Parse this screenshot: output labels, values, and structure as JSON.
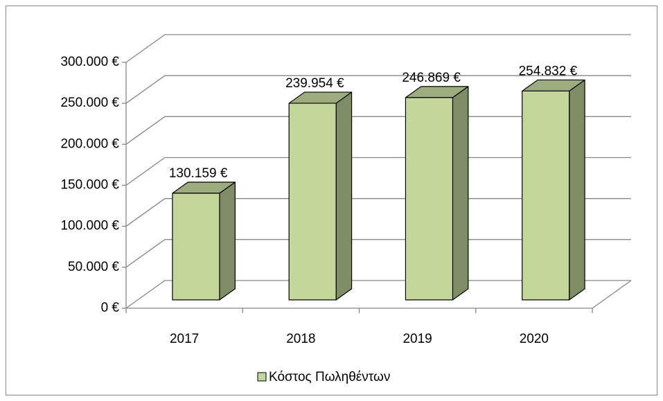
{
  "chart_data": {
    "type": "bar3d",
    "categories": [
      "2017",
      "2018",
      "2019",
      "2020"
    ],
    "series": [
      {
        "name": "Κόστος Πωληθέντων",
        "color": "#c4d79b",
        "values": [
          130159,
          239954,
          246869,
          254832
        ],
        "value_labels": [
          "130.159 €",
          "239.954 €",
          "246.869 €",
          "254.832 €"
        ]
      }
    ],
    "ylim": [
      0,
      300000
    ],
    "yticks": [
      {
        "value": 0,
        "label": "0 €"
      },
      {
        "value": 50000,
        "label": "50.000 €"
      },
      {
        "value": 100000,
        "label": "100.000 €"
      },
      {
        "value": 150000,
        "label": "150.000 €"
      },
      {
        "value": 200000,
        "label": "200.000 €"
      },
      {
        "value": 250000,
        "label": "250.000 €"
      },
      {
        "value": 300000,
        "label": "300.000 €"
      }
    ],
    "grid": true,
    "legend": "bottom"
  }
}
